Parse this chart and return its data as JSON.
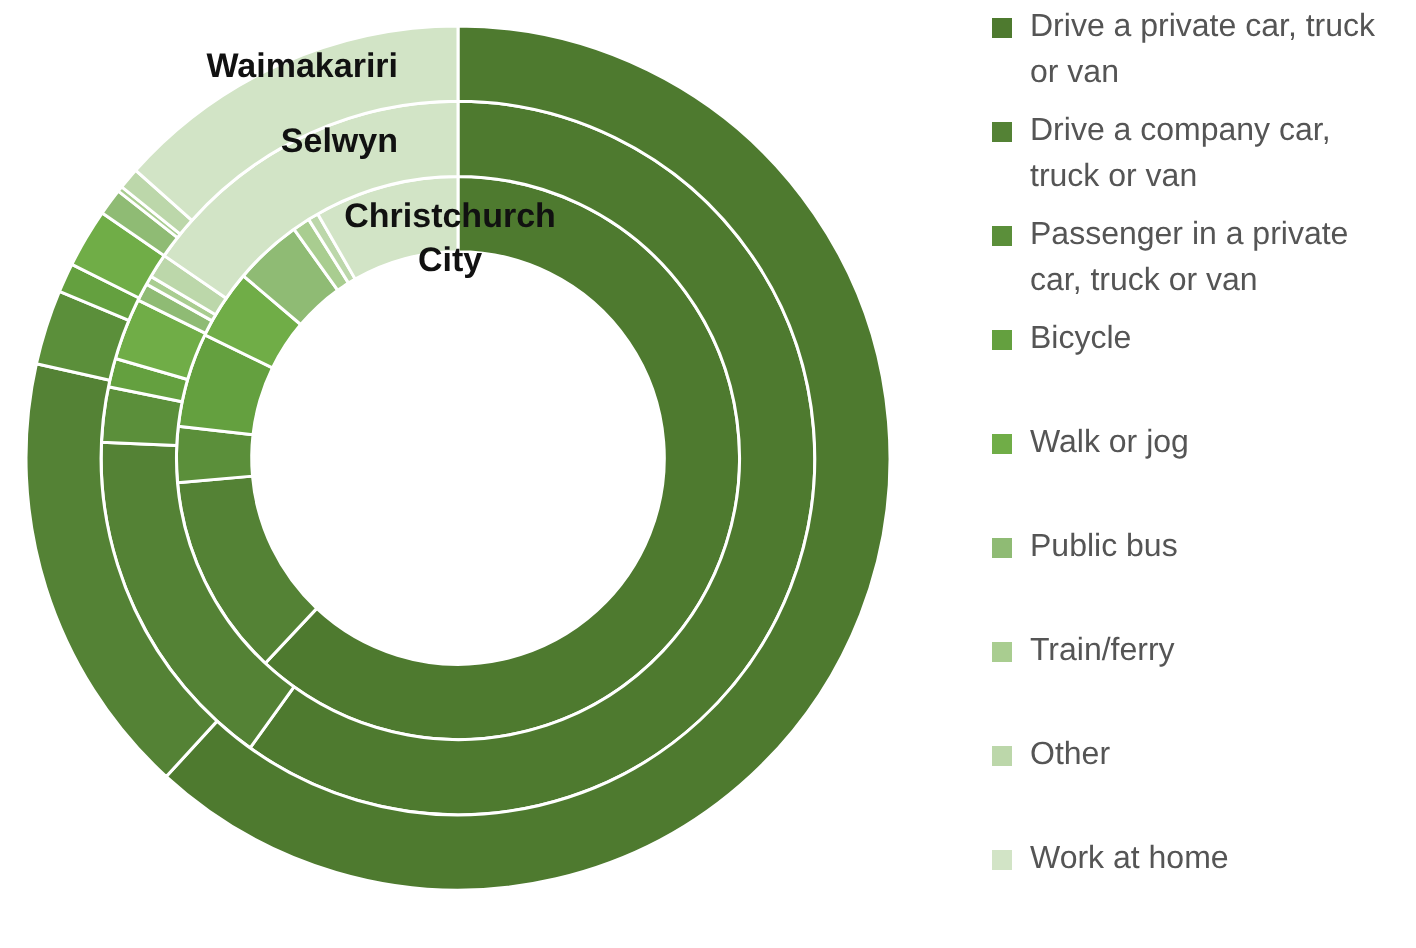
{
  "chart_data": {
    "type": "donut",
    "categories": [
      "Drive a private car, truck or van",
      "Drive a company car, truck or van",
      "Passenger in a private car, truck or van",
      "Bicycle",
      "Walk or jog",
      "Public bus",
      "Train/ferry",
      "Other",
      "Work at home"
    ],
    "colors": [
      "#4e7a2f",
      "#548235",
      "#5b8f3a",
      "#64a03f",
      "#70ad47",
      "#8fbb74",
      "#a9cd90",
      "#bcd7aa",
      "#d2e4c6"
    ],
    "series": [
      {
        "name": "Waimakariri",
        "values": [
          61.8,
          16.7,
          2.8,
          1.1,
          2.2,
          1.0,
          0.2,
          0.8,
          13.4
        ]
      },
      {
        "name": "Selwyn",
        "values": [
          59.9,
          15.8,
          2.5,
          1.3,
          2.8,
          0.8,
          0.4,
          1.1,
          15.4
        ]
      },
      {
        "name": "Christchurch City",
        "values": [
          62.0,
          11.6,
          3.2,
          5.4,
          4.0,
          3.9,
          1.0,
          0.6,
          8.3
        ]
      }
    ],
    "legend": "right"
  }
}
